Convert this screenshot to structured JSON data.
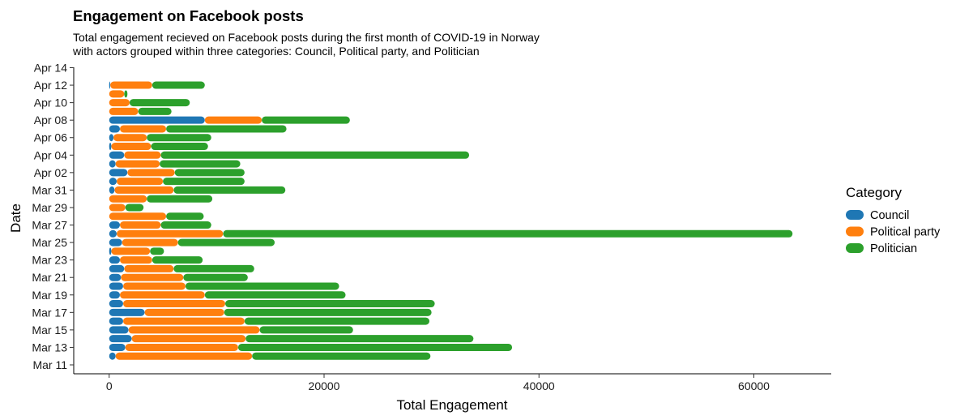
{
  "chart_data": {
    "type": "bar",
    "orientation": "horizontal",
    "stacked": true,
    "title": "Engagement on Facebook posts",
    "subtitle": [
      "Total engagement recieved on Facebook posts during the first month of COVID-19 in Norway",
      "with actors grouped within three categories: Council, Political party, and Politician"
    ],
    "xlabel": "Total Engagement",
    "ylabel": "Date",
    "xlim": [
      -3300,
      67200
    ],
    "xticks": [
      0,
      20000,
      40000,
      60000
    ],
    "xtick_labels": [
      "0",
      "20000",
      "40000",
      "60000"
    ],
    "y_dates": [
      "Mar 11",
      "Mar 12",
      "Mar 13",
      "Mar 14",
      "Mar 15",
      "Mar 16",
      "Mar 17",
      "Mar 18",
      "Mar 19",
      "Mar 20",
      "Mar 21",
      "Mar 22",
      "Mar 23",
      "Mar 24",
      "Mar 25",
      "Mar 26",
      "Mar 27",
      "Mar 28",
      "Mar 29",
      "Mar 30",
      "Mar 31",
      "Apr 01",
      "Apr 02",
      "Apr 03",
      "Apr 04",
      "Apr 05",
      "Apr 06",
      "Apr 07",
      "Apr 08",
      "Apr 09",
      "Apr 10",
      "Apr 11",
      "Apr 12",
      "Apr 13",
      "Apr 14"
    ],
    "ytick_labels": [
      "Mar 11",
      "Mar 13",
      "Mar 15",
      "Mar 17",
      "Mar 19",
      "Mar 21",
      "Mar 23",
      "Mar 25",
      "Mar 27",
      "Mar 29",
      "Mar 31",
      "Apr 02",
      "Apr 04",
      "Apr 06",
      "Apr 08",
      "Apr 10",
      "Apr 12",
      "Apr 14"
    ],
    "legend": {
      "title": "Category",
      "position": "right",
      "entries": [
        {
          "label": "Council",
          "color": "#1F77B4"
        },
        {
          "label": "Political party",
          "color": "#FF7F0E"
        },
        {
          "label": "Politician",
          "color": "#2CA02C"
        }
      ]
    },
    "grid": false,
    "series": [
      {
        "name": "Council",
        "color": "#1F77B4",
        "values": [
          null,
          600,
          1500,
          2100,
          1800,
          1300,
          3300,
          1300,
          1000,
          1300,
          1100,
          1400,
          1000,
          200,
          1200,
          700,
          1000,
          null,
          null,
          null,
          500,
          700,
          1700,
          600,
          1400,
          200,
          400,
          1000,
          8900,
          null,
          null,
          null,
          100,
          null,
          null
        ]
      },
      {
        "name": "Political party",
        "color": "#FF7F0E",
        "values": [
          null,
          12700,
          10500,
          10600,
          12200,
          11300,
          7400,
          9500,
          7900,
          5800,
          5800,
          4600,
          3000,
          3600,
          5200,
          9900,
          3800,
          5300,
          1500,
          3500,
          5500,
          4300,
          4400,
          4100,
          3400,
          3700,
          3100,
          4300,
          5300,
          2700,
          1900,
          1400,
          3900,
          null,
          null
        ]
      },
      {
        "name": "Politician",
        "color": "#2CA02C",
        "values": [
          null,
          16600,
          25500,
          21200,
          8700,
          17200,
          19300,
          19500,
          13100,
          14300,
          6000,
          7500,
          4700,
          1300,
          9000,
          53000,
          4700,
          3500,
          1700,
          6100,
          10400,
          7600,
          6500,
          7500,
          28700,
          5300,
          6000,
          11200,
          8200,
          3100,
          5600,
          300,
          4900,
          null,
          null
        ]
      }
    ]
  }
}
